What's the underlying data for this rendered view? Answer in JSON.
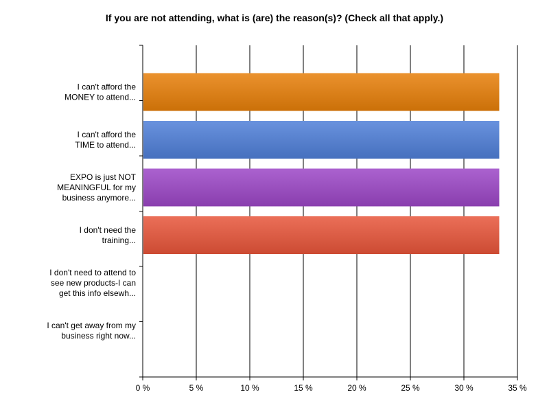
{
  "chart_data": {
    "type": "bar",
    "orientation": "horizontal",
    "title": "If you are not attending, what is (are) the reason(s)? (Check all that apply.)",
    "xlabel": "",
    "ylabel": "",
    "categories": [
      [
        "I can't afford the",
        "MONEY to attend..."
      ],
      [
        "I can't afford the",
        "TIME to attend..."
      ],
      [
        "EXPO is just NOT",
        "MEANINGFUL for my",
        "business anymore..."
      ],
      [
        "I don't need the",
        "training..."
      ],
      [
        "I don't need to attend to",
        "see new products-I can",
        "get this info elsewh..."
      ],
      [
        "I can't get away from my",
        "business right now..."
      ]
    ],
    "values": [
      33.3,
      33.3,
      33.3,
      33.3,
      0,
      0
    ],
    "colors": [
      "#e77f09",
      "#4f7fd8",
      "#9c46c6",
      "#e8553a",
      "#cccccc",
      "#cccccc"
    ],
    "xlim": [
      0,
      35
    ],
    "ticks": [
      0,
      5,
      10,
      15,
      20,
      25,
      30,
      35
    ],
    "tick_labels": [
      "0 %",
      "5 %",
      "10 %",
      "15 %",
      "20 %",
      "25 %",
      "30 %",
      "35 %"
    ],
    "grid": true
  }
}
